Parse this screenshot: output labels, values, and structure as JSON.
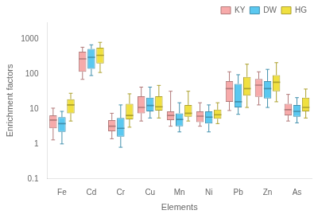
{
  "chart_data": {
    "type": "box",
    "xlabel": "Elements",
    "ylabel": "Enrichment factors",
    "categories": [
      "Fe",
      "Cd",
      "Cr",
      "Cu",
      "Mn",
      "Ni",
      "Pb",
      "Zn",
      "As"
    ],
    "series": [
      {
        "name": "KY",
        "color": "#F7AAAA",
        "whislo": [
          1.3,
          70.0,
          1.4,
          4.5,
          3.2,
          3.2,
          9.0,
          13.0,
          4.5
        ],
        "q1": [
          2.8,
          115.0,
          2.3,
          7.5,
          4.8,
          4.2,
          16.0,
          22.0,
          6.5
        ],
        "med": [
          4.8,
          270.0,
          3.2,
          11.0,
          6.5,
          6.2,
          38.0,
          48.0,
          9.5
        ],
        "q3": [
          6.5,
          430.0,
          4.8,
          23.0,
          8.5,
          8.5,
          62.0,
          72.0,
          14.0
        ],
        "whishi": [
          10.5,
          580.0,
          7.5,
          42.0,
          32.0,
          15.0,
          115.0,
          115.0,
          26.0
        ]
      },
      {
        "name": "DW",
        "color": "#5BC8F0",
        "whislo": [
          1.0,
          90.0,
          0.8,
          5.5,
          2.2,
          2.2,
          7.0,
          11.0,
          4.0
        ],
        "q1": [
          2.2,
          140.0,
          1.6,
          8.5,
          3.2,
          3.8,
          11.0,
          20.0,
          6.0
        ],
        "med": [
          3.8,
          300.0,
          2.8,
          12.5,
          5.0,
          5.8,
          16.0,
          38.0,
          8.5
        ],
        "q3": [
          5.8,
          520.0,
          5.5,
          21.0,
          7.5,
          8.5,
          52.0,
          62.0,
          13.0
        ],
        "whishi": [
          8.5,
          680.0,
          13.0,
          42.0,
          15.0,
          13.0,
          95.0,
          135.0,
          21.0
        ]
      },
      {
        "name": "HG",
        "color": "#F0E040",
        "whislo": [
          4.5,
          110.0,
          3.0,
          5.5,
          4.5,
          3.8,
          11.0,
          16.0,
          5.5
        ],
        "q1": [
          7.5,
          200.0,
          5.0,
          9.0,
          6.0,
          5.2,
          24.0,
          32.0,
          8.5
        ],
        "med": [
          13.0,
          340.0,
          6.5,
          11.5,
          7.5,
          6.8,
          38.0,
          58.0,
          11.0
        ],
        "q3": [
          19.0,
          560.0,
          14.0,
          23.0,
          13.0,
          9.5,
          82.0,
          92.0,
          21.0
        ],
        "whishi": [
          28.0,
          800.0,
          27.0,
          47.0,
          32.0,
          15.0,
          190.0,
          210.0,
          37.0
        ]
      }
    ],
    "log": "y",
    "ylim": [
      0.1,
      3000
    ],
    "yticks": [
      0.1,
      1,
      10,
      100,
      1000
    ],
    "grid": false,
    "legend": "upper right"
  }
}
